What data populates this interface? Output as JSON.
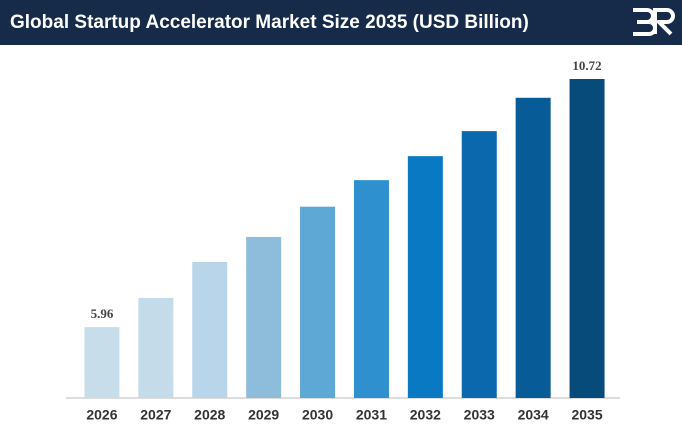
{
  "chart_data": {
    "type": "bar",
    "title": "Global Startup Accelerator Market Size 2035 (USD Billion)",
    "categories": [
      "2026",
      "2027",
      "2028",
      "2029",
      "2030",
      "2031",
      "2032",
      "2033",
      "2034",
      "2035"
    ],
    "values": [
      5.96,
      6.52,
      7.21,
      7.69,
      8.27,
      8.78,
      9.24,
      9.72,
      10.36,
      10.72
    ],
    "colors": [
      "#c7dde9",
      "#c4dcea",
      "#b8d5e9",
      "#8ebcdb",
      "#5ea8d5",
      "#2f90d0",
      "#0a79c3",
      "#0b68ad",
      "#075b96",
      "#064b7a"
    ],
    "ylim": [
      4.6,
      11.2
    ],
    "data_labels": "ends"
  }
}
